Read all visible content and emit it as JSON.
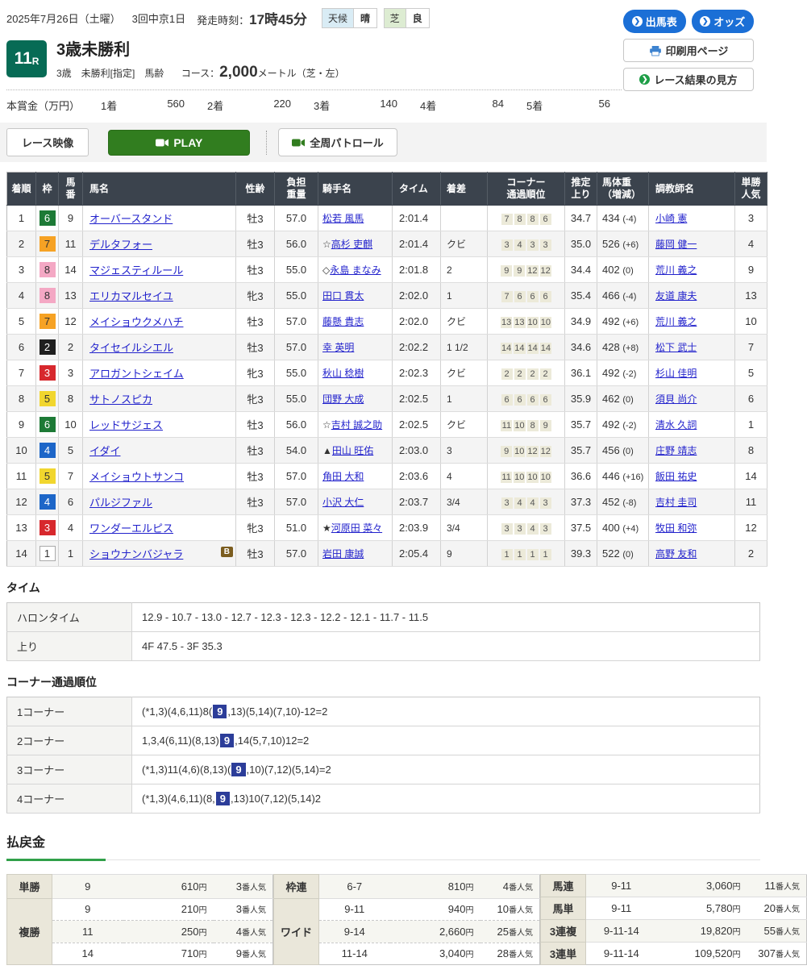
{
  "icons": {
    "chevron": "❯"
  },
  "header": {
    "date": "2025年7月26日（土曜）",
    "meeting": "3回中京1日",
    "start_label": "発走時刻：",
    "start_time": "17時45分",
    "weather_label": "天候",
    "weather_value": "晴",
    "turf_label": "芝",
    "turf_value": "良",
    "btn_entries": "出馬表",
    "btn_odds": "オッズ",
    "btn_print": "印刷用ページ",
    "btn_guide": "レース結果の見方"
  },
  "race": {
    "number": "11",
    "number_suffix": "R",
    "title": "3歳未勝利",
    "conditions": "3歳　未勝利[指定]　馬齢",
    "course_label": "コース：",
    "distance": "2,000",
    "course_suffix": "メートル（芝・左）",
    "prize_label": "本賞金（万円）",
    "prizes": [
      {
        "place": "1着",
        "amount": "560"
      },
      {
        "place": "2着",
        "amount": "220"
      },
      {
        "place": "3着",
        "amount": "140"
      },
      {
        "place": "4着",
        "amount": "84"
      },
      {
        "place": "5着",
        "amount": "56"
      }
    ]
  },
  "video": {
    "race_video": "レース映像",
    "play": "PLAY",
    "patrol": "全周パトロール"
  },
  "results": {
    "columns": [
      {
        "key": "order",
        "label": "着順"
      },
      {
        "key": "frame",
        "label": "枠"
      },
      {
        "key": "umaban",
        "label": "馬\n番"
      },
      {
        "key": "horse",
        "label": "馬名"
      },
      {
        "key": "sexage",
        "label": "性齢"
      },
      {
        "key": "weight",
        "label": "負担\n重量"
      },
      {
        "key": "jockey",
        "label": "騎手名"
      },
      {
        "key": "time",
        "label": "タイム"
      },
      {
        "key": "margin",
        "label": "着差"
      },
      {
        "key": "corners",
        "label": "コーナー\n通過順位"
      },
      {
        "key": "last3f",
        "label": "推定\n上り"
      },
      {
        "key": "bodyweight",
        "label": "馬体重\n（増減）"
      },
      {
        "key": "trainer",
        "label": "調教師名"
      },
      {
        "key": "pop",
        "label": "単勝\n人気"
      }
    ],
    "rows": [
      {
        "order": "1",
        "frame": 6,
        "umaban": "9",
        "horse": "オーバースタンド",
        "blinker": "",
        "sexage": "牡3",
        "weight": "57.0",
        "jockey_mark": "",
        "jockey": "松若 風馬",
        "time": "2:01.4",
        "margin": "",
        "corners": [
          "7",
          "8",
          "8",
          "6"
        ],
        "last3f": "34.7",
        "bodyweight": "434",
        "bw_diff": "(-4)",
        "trainer": "小崎 憲",
        "pop": "3"
      },
      {
        "order": "2",
        "frame": 7,
        "umaban": "11",
        "horse": "デルタフォー",
        "blinker": "",
        "sexage": "牡3",
        "weight": "56.0",
        "jockey_mark": "☆",
        "jockey": "高杉 吏麒",
        "time": "2:01.4",
        "margin": "クビ",
        "corners": [
          "3",
          "4",
          "3",
          "3"
        ],
        "last3f": "35.0",
        "bodyweight": "526",
        "bw_diff": "(+6)",
        "trainer": "藤岡 健一",
        "pop": "4"
      },
      {
        "order": "3",
        "frame": 8,
        "umaban": "14",
        "horse": "マジェスティルール",
        "blinker": "",
        "sexage": "牡3",
        "weight": "55.0",
        "jockey_mark": "◇",
        "jockey": "永島 まなみ",
        "time": "2:01.8",
        "margin": "2",
        "corners": [
          "9",
          "9",
          "12",
          "12"
        ],
        "last3f": "34.4",
        "bodyweight": "402",
        "bw_diff": "(0)",
        "trainer": "荒川 義之",
        "pop": "9"
      },
      {
        "order": "4",
        "frame": 8,
        "umaban": "13",
        "horse": "エリカマルセイユ",
        "blinker": "",
        "sexage": "牝3",
        "weight": "55.0",
        "jockey_mark": "",
        "jockey": "田口 貫太",
        "time": "2:02.0",
        "margin": "1",
        "corners": [
          "7",
          "6",
          "6",
          "6"
        ],
        "last3f": "35.4",
        "bodyweight": "466",
        "bw_diff": "(-4)",
        "trainer": "友道 康夫",
        "pop": "13"
      },
      {
        "order": "5",
        "frame": 7,
        "umaban": "12",
        "horse": "メイショウクメハチ",
        "blinker": "",
        "sexage": "牡3",
        "weight": "57.0",
        "jockey_mark": "",
        "jockey": "藤懸 貴志",
        "time": "2:02.0",
        "margin": "クビ",
        "corners": [
          "13",
          "13",
          "10",
          "10"
        ],
        "last3f": "34.9",
        "bodyweight": "492",
        "bw_diff": "(+6)",
        "trainer": "荒川 義之",
        "pop": "10"
      },
      {
        "order": "6",
        "frame": 2,
        "umaban": "2",
        "horse": "タイセイルシエル",
        "blinker": "",
        "sexage": "牡3",
        "weight": "57.0",
        "jockey_mark": "",
        "jockey": "幸 英明",
        "time": "2:02.2",
        "margin": "1 1/2",
        "corners": [
          "14",
          "14",
          "14",
          "14"
        ],
        "last3f": "34.6",
        "bodyweight": "428",
        "bw_diff": "(+8)",
        "trainer": "松下 武士",
        "pop": "7"
      },
      {
        "order": "7",
        "frame": 3,
        "umaban": "3",
        "horse": "アロガントシェイム",
        "blinker": "",
        "sexage": "牝3",
        "weight": "55.0",
        "jockey_mark": "",
        "jockey": "秋山 稔樹",
        "time": "2:02.3",
        "margin": "クビ",
        "corners": [
          "2",
          "2",
          "2",
          "2"
        ],
        "last3f": "36.1",
        "bodyweight": "492",
        "bw_diff": "(-2)",
        "trainer": "杉山 佳明",
        "pop": "5"
      },
      {
        "order": "8",
        "frame": 5,
        "umaban": "8",
        "horse": "サトノスピカ",
        "blinker": "",
        "sexage": "牝3",
        "weight": "55.0",
        "jockey_mark": "",
        "jockey": "団野 大成",
        "time": "2:02.5",
        "margin": "1",
        "corners": [
          "6",
          "6",
          "6",
          "6"
        ],
        "last3f": "35.9",
        "bodyweight": "462",
        "bw_diff": "(0)",
        "trainer": "須貝 尚介",
        "pop": "6"
      },
      {
        "order": "9",
        "frame": 6,
        "umaban": "10",
        "horse": "レッドサジェス",
        "blinker": "",
        "sexage": "牡3",
        "weight": "56.0",
        "jockey_mark": "☆",
        "jockey": "吉村 誠之助",
        "time": "2:02.5",
        "margin": "クビ",
        "corners": [
          "11",
          "10",
          "8",
          "9"
        ],
        "last3f": "35.7",
        "bodyweight": "492",
        "bw_diff": "(-2)",
        "trainer": "清水 久詞",
        "pop": "1"
      },
      {
        "order": "10",
        "frame": 4,
        "umaban": "5",
        "horse": "イダイ",
        "blinker": "",
        "sexage": "牡3",
        "weight": "54.0",
        "jockey_mark": "▲",
        "jockey": "田山 旺佑",
        "time": "2:03.0",
        "margin": "3",
        "corners": [
          "9",
          "10",
          "12",
          "12"
        ],
        "last3f": "35.7",
        "bodyweight": "456",
        "bw_diff": "(0)",
        "trainer": "庄野 靖志",
        "pop": "8"
      },
      {
        "order": "11",
        "frame": 5,
        "umaban": "7",
        "horse": "メイショウトサンコ",
        "blinker": "",
        "sexage": "牡3",
        "weight": "57.0",
        "jockey_mark": "",
        "jockey": "角田 大和",
        "time": "2:03.6",
        "margin": "4",
        "corners": [
          "11",
          "10",
          "10",
          "10"
        ],
        "last3f": "36.6",
        "bodyweight": "446",
        "bw_diff": "(+16)",
        "trainer": "飯田 祐史",
        "pop": "14"
      },
      {
        "order": "12",
        "frame": 4,
        "umaban": "6",
        "horse": "パルジファル",
        "blinker": "",
        "sexage": "牡3",
        "weight": "57.0",
        "jockey_mark": "",
        "jockey": "小沢 大仁",
        "time": "2:03.7",
        "margin": "3/4",
        "corners": [
          "3",
          "4",
          "4",
          "3"
        ],
        "last3f": "37.3",
        "bodyweight": "452",
        "bw_diff": "(-8)",
        "trainer": "吉村 圭司",
        "pop": "11"
      },
      {
        "order": "13",
        "frame": 3,
        "umaban": "4",
        "horse": "ワンダーエルピス",
        "blinker": "",
        "sexage": "牝3",
        "weight": "51.0",
        "jockey_mark": "★",
        "jockey": "河原田 菜々",
        "time": "2:03.9",
        "margin": "3/4",
        "corners": [
          "3",
          "3",
          "4",
          "3"
        ],
        "last3f": "37.5",
        "bodyweight": "400",
        "bw_diff": "(+4)",
        "trainer": "牧田 和弥",
        "pop": "12"
      },
      {
        "order": "14",
        "frame": 1,
        "umaban": "1",
        "horse": "ショウナンバジャラ",
        "blinker": "B",
        "sexage": "牡3",
        "weight": "57.0",
        "jockey_mark": "",
        "jockey": "岩田 康誠",
        "time": "2:05.4",
        "margin": "9",
        "corners": [
          "1",
          "1",
          "1",
          "1"
        ],
        "last3f": "39.3",
        "bodyweight": "522",
        "bw_diff": "(0)",
        "trainer": "高野 友和",
        "pop": "2"
      }
    ]
  },
  "time_section": {
    "title": "タイム",
    "rows": [
      {
        "label": "ハロンタイム",
        "value": "12.9 - 10.7 - 13.0 - 12.7 - 12.3 - 12.3 - 12.2 - 12.1 - 11.7 - 11.5"
      },
      {
        "label": "上り",
        "value": "4F 47.5 - 3F 35.3"
      }
    ]
  },
  "corner_section": {
    "title": "コーナー通過順位",
    "rows": [
      {
        "label": "1コーナー",
        "before": "(*1,3)(4,6,11)8(",
        "highlight": "9",
        "after": ",13)(5,14)(7,10)-12=2"
      },
      {
        "label": "2コーナー",
        "before": "1,3,4(6,11)(8,13)",
        "highlight": "9",
        "after": ",14(5,7,10)12=2"
      },
      {
        "label": "3コーナー",
        "before": "(*1,3)11(4,6)(8,13)(",
        "highlight": "9",
        "after": ",10)(7,12)(5,14)=2"
      },
      {
        "label": "4コーナー",
        "before": "(*1,3)(4,6,11)(8,",
        "highlight": "9",
        "after": ",13)10(7,12)(5,14)2"
      }
    ]
  },
  "payout": {
    "title": "払戻金",
    "units": {
      "yen": "円",
      "pop": "番人気"
    },
    "groups": [
      [
        {
          "type": "単勝",
          "rows": [
            {
              "comb": "9",
              "amount": "610",
              "pop": "3"
            }
          ]
        },
        {
          "type": "複勝",
          "rows": [
            {
              "comb": "9",
              "amount": "210",
              "pop": "3"
            },
            {
              "comb": "11",
              "amount": "250",
              "pop": "4"
            },
            {
              "comb": "14",
              "amount": "710",
              "pop": "9"
            }
          ]
        }
      ],
      [
        {
          "type": "枠連",
          "rows": [
            {
              "comb": "6-7",
              "amount": "810",
              "pop": "4"
            }
          ]
        },
        {
          "type": "ワイド",
          "rows": [
            {
              "comb": "9-11",
              "amount": "940",
              "pop": "10"
            },
            {
              "comb": "9-14",
              "amount": "2,660",
              "pop": "25"
            },
            {
              "comb": "11-14",
              "amount": "3,040",
              "pop": "28"
            }
          ]
        }
      ],
      [
        {
          "type": "馬連",
          "rows": [
            {
              "comb": "9-11",
              "amount": "3,060",
              "pop": "11"
            }
          ]
        },
        {
          "type": "馬単",
          "rows": [
            {
              "comb": "9-11",
              "amount": "5,780",
              "pop": "20"
            }
          ]
        },
        {
          "type": "3連複",
          "rows": [
            {
              "comb": "9-11-14",
              "amount": "19,820",
              "pop": "55"
            }
          ]
        },
        {
          "type": "3連単",
          "rows": [
            {
              "comb": "9-11-14",
              "amount": "109,520",
              "pop": "307"
            }
          ]
        }
      ]
    ]
  }
}
